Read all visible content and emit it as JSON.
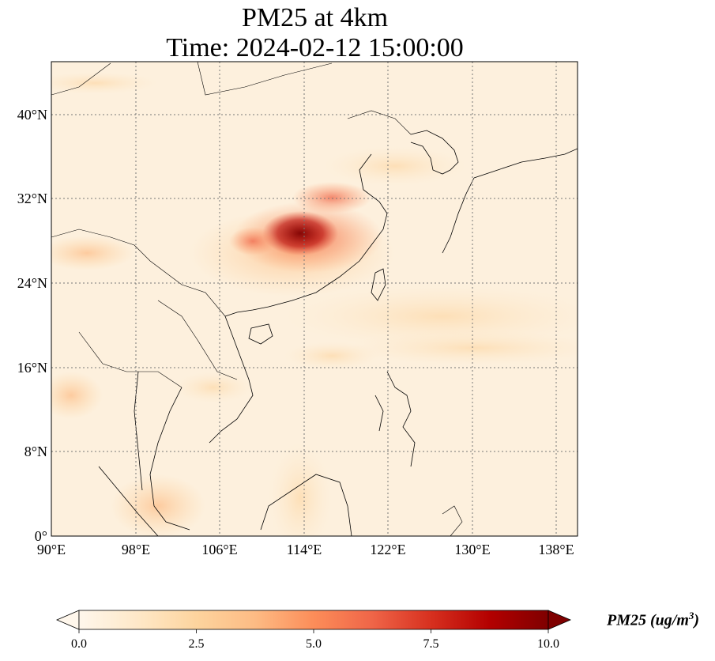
{
  "title": {
    "line1": "PM25 at 4km",
    "line2": "Time: 2024-02-12 15:00:00"
  },
  "map": {
    "lon_range": [
      90,
      140
    ],
    "lat_range": [
      0,
      45
    ],
    "lon_ticks": [
      "90°E",
      "98°E",
      "106°E",
      "114°E",
      "122°E",
      "130°E",
      "138°E"
    ],
    "lat_ticks": [
      "0°",
      "8°N",
      "16°N",
      "24°N",
      "32°N",
      "40°N"
    ],
    "gridlines": "dotted",
    "variable": "PM25",
    "altitude": "4km"
  },
  "colorbar": {
    "colormap": "OrRd",
    "range": [
      0.0,
      10.0
    ],
    "ticks": [
      "0.0",
      "2.5",
      "5.0",
      "7.5",
      "10.0"
    ],
    "label_main": "PM25 (ug/m",
    "label_sup": "3",
    "label_close": ")",
    "extend": "both",
    "colors": [
      "#fff7ec",
      "#fee8c8",
      "#fdd49e",
      "#fdbb84",
      "#fc8d59",
      "#ef6548",
      "#d7301f",
      "#b30000",
      "#7f0000"
    ]
  }
}
